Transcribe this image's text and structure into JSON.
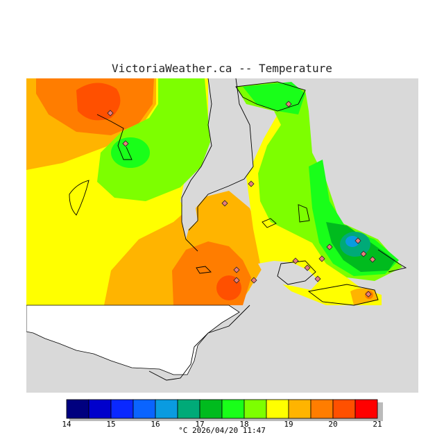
{
  "header": {
    "title": "VictoriaWeather.ca -- Temperature"
  },
  "legend": {
    "ticks": [
      "14",
      "15",
      "16",
      "17",
      "18",
      "19",
      "20",
      "21"
    ],
    "colors": [
      "#00007f",
      "#0000cc",
      "#0a28ff",
      "#0a64ff",
      "#0a9be0",
      "#00aa78",
      "#00bb1e",
      "#19ff19",
      "#7dff00",
      "#ffff00",
      "#ffb400",
      "#ff7d00",
      "#ff5000",
      "#ff0000"
    ]
  },
  "footer": {
    "caption": "°C  2026/04/20 11:47"
  }
}
